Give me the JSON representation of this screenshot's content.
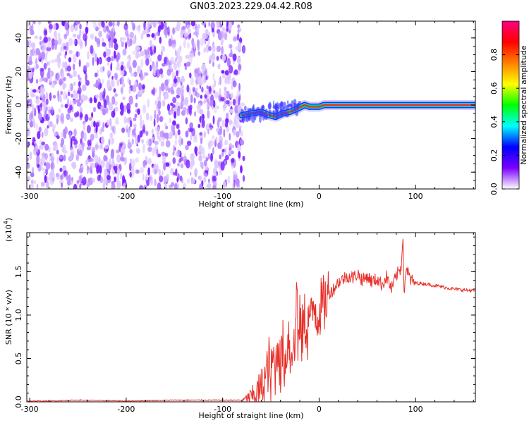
{
  "title": "GN03.2023.229.04.42.R08",
  "chart_data": [
    {
      "type": "heatmap",
      "xlabel": "Height of straight line (km)",
      "ylabel": "Frequency (Hz)",
      "xlim": [
        -303,
        162
      ],
      "ylim": [
        -50,
        50
      ],
      "xticks": [
        -300,
        -200,
        -100,
        0,
        100
      ],
      "xtick_labels": [
        "-300",
        "-200",
        "-100",
        "0",
        "100"
      ],
      "yticks": [
        40,
        20,
        0,
        -20,
        -40
      ],
      "ytick_labels": [
        "40",
        "20",
        "0",
        "-20",
        "-40"
      ],
      "colorbar": {
        "label": "Normalized spectral amplitude",
        "range": [
          0,
          1
        ],
        "ticks": [
          0.0,
          0.2,
          0.4,
          0.6,
          0.8
        ],
        "tick_labels": [
          "0.0",
          "0.2",
          "0.4",
          "0.6",
          "0.8"
        ],
        "colors": [
          "#ffffff",
          "#7a00ff",
          "#0000ff",
          "#00ffff",
          "#00ff00",
          "#ffff00",
          "#ff8000",
          "#ff0000",
          "#ff0080"
        ]
      },
      "noise_region_x": [
        -303,
        -78
      ],
      "signal_track": [
        {
          "x": -80,
          "y": -6
        },
        {
          "x": -70,
          "y": -5
        },
        {
          "x": -60,
          "y": -4
        },
        {
          "x": -52,
          "y": -6
        },
        {
          "x": -45,
          "y": -7
        },
        {
          "x": -38,
          "y": -5
        },
        {
          "x": -30,
          "y": -4
        },
        {
          "x": -22,
          "y": -2
        },
        {
          "x": -15,
          "y": 0
        },
        {
          "x": -10,
          "y": -1
        },
        {
          "x": 0,
          "y": -1
        },
        {
          "x": 5,
          "y": 0
        },
        {
          "x": 20,
          "y": 0
        },
        {
          "x": 50,
          "y": 0
        },
        {
          "x": 100,
          "y": 0
        },
        {
          "x": 162,
          "y": 0
        }
      ]
    },
    {
      "type": "line",
      "xlabel": "Height of straight line (km)",
      "ylabel": "SNR (10 * v/v)",
      "y_multiplier": "(x10",
      "y_multiplier_exp": "4",
      "xlim": [
        -303,
        162
      ],
      "ylim": [
        0,
        1.95
      ],
      "xticks": [
        -300,
        -200,
        -100,
        0,
        100
      ],
      "xtick_labels": [
        "-300",
        "-200",
        "-100",
        "0",
        "100"
      ],
      "yticks": [
        0.0,
        0.5,
        1.0,
        1.5
      ],
      "ytick_labels": [
        "0.0",
        "0.5",
        "1.0",
        "1.5"
      ],
      "series": [
        {
          "color": "#e8302a",
          "x": [
            -303,
            -280,
            -250,
            -200,
            -150,
            -100,
            -80,
            -75,
            -70,
            -65,
            -60,
            -55,
            -52,
            -50,
            -48,
            -45,
            -42,
            -40,
            -38,
            -35,
            -32,
            -30,
            -28,
            -25,
            -23,
            -22,
            -20,
            -18,
            -15,
            -12,
            -10,
            -8,
            -5,
            -2,
            0,
            5,
            10,
            15,
            20,
            25,
            30,
            35,
            40,
            45,
            50,
            55,
            60,
            65,
            70,
            75,
            80,
            85,
            87,
            88,
            90,
            95,
            100,
            110,
            120,
            130,
            140,
            150,
            162
          ],
          "y": [
            0.01,
            0.01,
            0.02,
            0.01,
            0.02,
            0.02,
            0.02,
            0.04,
            0.06,
            0.1,
            0.16,
            0.3,
            0.45,
            0.22,
            0.5,
            0.38,
            0.75,
            0.3,
            0.65,
            0.4,
            0.85,
            0.5,
            0.7,
            0.55,
            1.6,
            0.6,
            0.9,
            0.75,
            0.95,
            0.8,
            1.05,
            0.9,
            1.15,
            1.0,
            1.08,
            1.12,
            1.25,
            1.3,
            1.38,
            1.42,
            1.45,
            1.43,
            1.48,
            1.4,
            1.45,
            1.38,
            1.42,
            1.35,
            1.44,
            1.3,
            1.45,
            1.55,
            1.95,
            1.2,
            1.55,
            1.4,
            1.37,
            1.36,
            1.34,
            1.32,
            1.3,
            1.29,
            1.28
          ]
        }
      ]
    }
  ]
}
